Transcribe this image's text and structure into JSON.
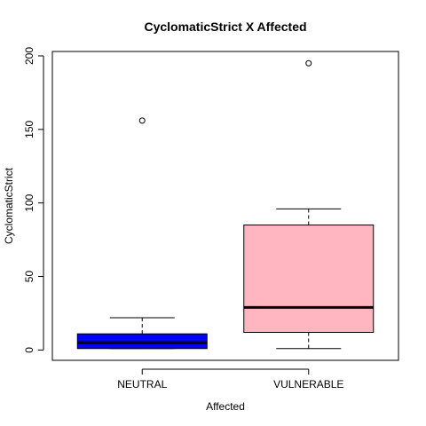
{
  "chart_data": {
    "type": "boxplot",
    "title": "CyclomaticStrict X Affected",
    "xlabel": "Affected",
    "ylabel": "CyclomaticStrict",
    "ylim": [
      -7,
      203
    ],
    "yticks": [
      0,
      50,
      100,
      150,
      200
    ],
    "grid": false,
    "groups": [
      {
        "category": "NEUTRAL",
        "color": "#0000ff",
        "min": 1,
        "q1": 1,
        "median": 5,
        "q3": 11,
        "max": 22,
        "outliers": [
          156
        ]
      },
      {
        "category": "VULNERABLE",
        "color": "#ffb6c1",
        "min": 1,
        "q1": 12,
        "median": 29,
        "q3": 85,
        "max": 96,
        "outliers": [
          195
        ]
      }
    ]
  }
}
